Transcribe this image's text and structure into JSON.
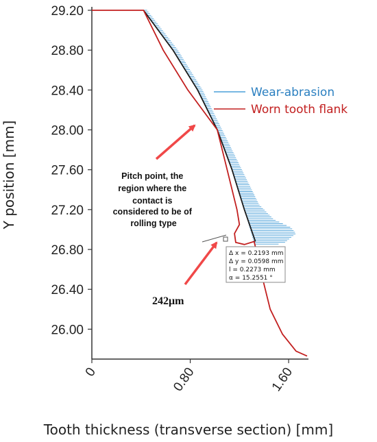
{
  "chart_data": {
    "type": "line",
    "title": "",
    "xlabel": "Tooth thickness (transverse section) [mm]",
    "ylabel": "Y position [mm]",
    "xlim": [
      0,
      1.75
    ],
    "ylim": [
      25.7,
      29.2
    ],
    "x_ticks": [
      "0",
      "0.80",
      "1.60"
    ],
    "y_ticks": [
      "29.20",
      "28.80",
      "28.40",
      "28.00",
      "27.60",
      "27.20",
      "26.80",
      "26.40",
      "26.00"
    ],
    "legend_position": "right",
    "series": [
      {
        "name": "Wear-abrasion",
        "color": "#4a9fd8",
        "style": "hatched band",
        "left_edge": [
          [
            0.42,
            29.2
          ],
          [
            0.66,
            28.8
          ],
          [
            0.86,
            28.4
          ],
          [
            1.02,
            28.0
          ],
          [
            1.14,
            27.6
          ],
          [
            1.24,
            27.2
          ],
          [
            1.32,
            26.85
          ]
        ],
        "right_edge": [
          [
            0.45,
            29.2
          ],
          [
            0.7,
            28.8
          ],
          [
            0.9,
            28.4
          ],
          [
            1.06,
            28.0
          ],
          [
            1.22,
            27.6
          ],
          [
            1.36,
            27.25
          ],
          [
            1.48,
            27.1
          ],
          [
            1.62,
            27.02
          ],
          [
            1.66,
            26.96
          ],
          [
            1.56,
            26.86
          ],
          [
            1.42,
            26.84
          ]
        ]
      },
      {
        "name": "Worn tooth flank",
        "color": "#c21f1f",
        "points": [
          [
            0.0,
            29.2
          ],
          [
            0.42,
            29.2
          ],
          [
            0.58,
            28.8
          ],
          [
            0.78,
            28.4
          ],
          [
            1.02,
            28.0
          ],
          [
            1.1,
            27.6
          ],
          [
            1.18,
            27.2
          ],
          [
            1.2,
            27.05
          ],
          [
            1.16,
            26.96
          ],
          [
            1.17,
            26.87
          ],
          [
            1.24,
            26.85
          ],
          [
            1.32,
            26.88
          ],
          [
            1.38,
            26.55
          ],
          [
            1.45,
            26.2
          ],
          [
            1.55,
            25.95
          ],
          [
            1.66,
            25.78
          ],
          [
            1.75,
            25.73
          ]
        ]
      },
      {
        "name": "",
        "color": "#1a1a1a",
        "points": [
          [
            0.42,
            29.2
          ],
          [
            0.66,
            28.8
          ],
          [
            0.86,
            28.4
          ],
          [
            1.02,
            28.0
          ],
          [
            1.14,
            27.6
          ],
          [
            1.24,
            27.2
          ],
          [
            1.33,
            26.88
          ]
        ]
      }
    ],
    "annotations": {
      "pitch_text": [
        "Pitch point, the",
        "region where the",
        "contact is",
        "considered to be of",
        "rolling type"
      ],
      "measurement_lines": [
        "Δ x = 0.2193 mm",
        "Δ y = 0.0598 mm",
        "l = 0.2273 mm",
        "α = 15.2551 °"
      ],
      "depth_label": "242μm"
    },
    "grid": false
  },
  "colors": {
    "wear": "#4a9fd8",
    "worn": "#c21f1f",
    "profile": "#1a1a1a",
    "arrow": "#f04848"
  }
}
